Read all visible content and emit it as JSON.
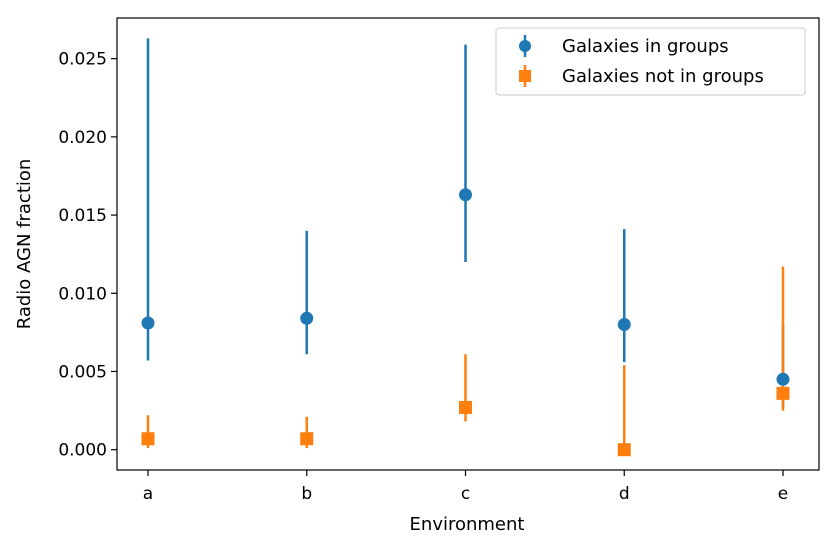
{
  "chart_data": {
    "type": "scatter",
    "xlabel": "Environment",
    "ylabel": "Radio AGN fraction",
    "categories": [
      "a",
      "b",
      "c",
      "d",
      "e"
    ],
    "ylim": [
      -0.0013,
      0.0276
    ],
    "yticks": [
      0.0,
      0.005,
      0.01,
      0.015,
      0.02,
      0.025
    ],
    "ytick_labels": [
      "0.000",
      "0.005",
      "0.010",
      "0.015",
      "0.020",
      "0.025"
    ],
    "grid": false,
    "legend_position": "upper-right",
    "series": [
      {
        "name": "Galaxies in groups",
        "marker": "circle",
        "color": "#1f77b4",
        "values": [
          0.0081,
          0.0084,
          0.0163,
          0.008,
          0.0045
        ],
        "err_low": [
          0.0057,
          0.0061,
          0.012,
          0.0056,
          0.0027
        ],
        "err_high": [
          0.0263,
          0.014,
          0.0259,
          0.0141,
          0.0081
        ]
      },
      {
        "name": "Galaxies not in groups",
        "marker": "square",
        "color": "#ff7f0e",
        "values": [
          0.0007,
          0.0007,
          0.0027,
          0.0,
          0.0036
        ],
        "err_low": [
          0.0001,
          0.0001,
          0.0018,
          0.0,
          0.0025
        ],
        "err_high": [
          0.0022,
          0.0021,
          0.0061,
          0.0054,
          0.0117
        ]
      }
    ]
  }
}
